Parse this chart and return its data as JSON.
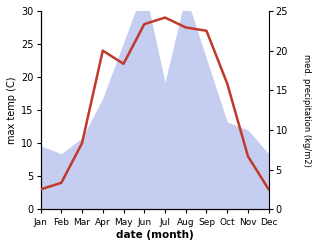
{
  "months": [
    "Jan",
    "Feb",
    "Mar",
    "Apr",
    "May",
    "Jun",
    "Jul",
    "Aug",
    "Sep",
    "Oct",
    "Nov",
    "Dec"
  ],
  "temp": [
    3,
    4,
    10,
    24,
    22,
    28,
    29,
    27.5,
    27,
    19,
    8,
    3
  ],
  "precip": [
    8,
    7,
    9,
    14,
    21,
    28,
    16,
    27,
    19,
    11,
    10,
    7
  ],
  "temp_color": "#c0392b",
  "precip_color": "#c5cef0",
  "temp_ylim": [
    0,
    30
  ],
  "precip_ylim": [
    0,
    25
  ],
  "temp_yticks": [
    0,
    5,
    10,
    15,
    20,
    25,
    30
  ],
  "precip_yticks": [
    0,
    5,
    10,
    15,
    20,
    25
  ],
  "xlabel": "date (month)",
  "ylabel_left": "max temp (C)",
  "ylabel_right": "med. precipitation (kg/m2)"
}
